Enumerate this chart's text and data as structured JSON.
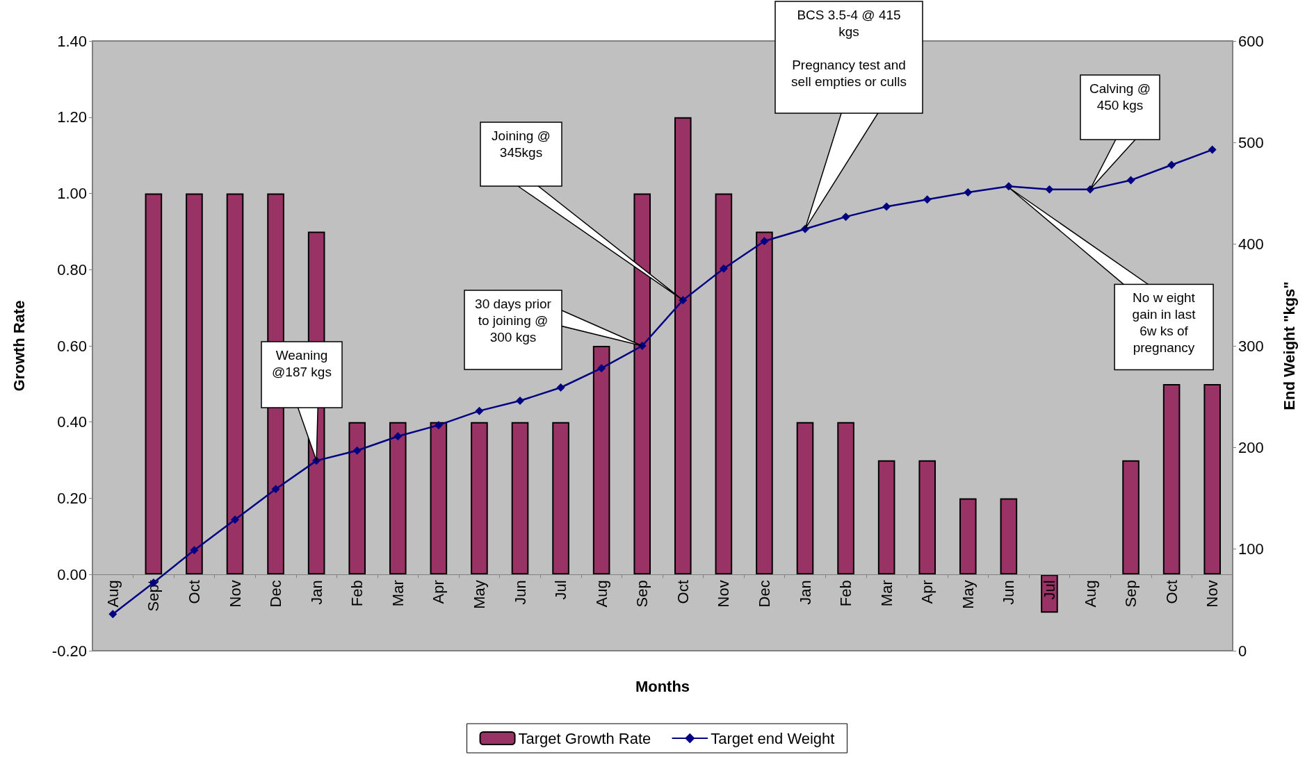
{
  "chart_data": {
    "type": "bar",
    "xlabel": "Months",
    "ylabel": "Growth Rate",
    "y2label": "End Weight \"kgs\"",
    "categories": [
      "Aug",
      "Sept",
      "Oct",
      "Nov",
      "Dec",
      "Jan",
      "Feb",
      "Mar",
      "Apr",
      "May",
      "Jun",
      "Jul",
      "Aug",
      "Sep",
      "Oct",
      "Nov",
      "Dec",
      "Jan",
      "Feb",
      "Mar",
      "Apr",
      "May",
      "Jun",
      "Jul",
      "Aug",
      "Sep",
      "Oct",
      "Nov"
    ],
    "series": [
      {
        "name": "Target Growth Rate",
        "type": "bar",
        "color": "#993366",
        "values": [
          null,
          1.0,
          1.0,
          1.0,
          1.0,
          0.9,
          0.4,
          0.4,
          0.4,
          0.4,
          0.4,
          0.4,
          0.6,
          1.0,
          1.2,
          1.0,
          0.9,
          0.4,
          0.4,
          0.3,
          0.3,
          0.2,
          0.2,
          -0.1,
          null,
          0.3,
          0.5,
          0.5
        ]
      },
      {
        "name": "Target end Weight",
        "type": "line",
        "axis": "y2",
        "color": "#000080",
        "marker": "diamond",
        "line_style": "solid",
        "values": [
          36,
          67,
          99,
          129,
          159,
          187,
          197,
          211,
          222,
          236,
          246,
          259,
          278,
          300,
          345,
          376,
          403,
          415,
          427,
          437,
          444,
          451,
          457,
          454,
          454,
          463,
          478,
          493
        ]
      }
    ],
    "ylim": [
      -0.2,
      1.4
    ],
    "yticks": [
      {
        "value": -0.2,
        "label": "-0.20"
      },
      {
        "value": 0,
        "label": "0.00"
      },
      {
        "value": 0.2,
        "label": "0.20"
      },
      {
        "value": 0.4,
        "label": "0.40"
      },
      {
        "value": 0.6,
        "label": "0.60"
      },
      {
        "value": 0.8,
        "label": "0.80"
      },
      {
        "value": 1.0,
        "label": "1.00"
      },
      {
        "value": 1.2,
        "label": "1.20"
      },
      {
        "value": 1.4,
        "label": "1.40"
      }
    ],
    "y2lim": [
      0,
      600
    ],
    "y2ticks": [
      0,
      100,
      200,
      300,
      400,
      500,
      600
    ],
    "grid": false,
    "legend": "bottom",
    "annotations": [
      "Weaning\n@187 kgs",
      "30 days prior\nto joining @\n300 kgs",
      "Joining @\n345kgs",
      "BCS 3.5-4 @ 415\nkgs\n\nPregnancy test and\nsell empties or culls",
      "Calving @\n450 kgs",
      "No w eight\ngain in last\n6w ks of\npregnancy"
    ]
  }
}
